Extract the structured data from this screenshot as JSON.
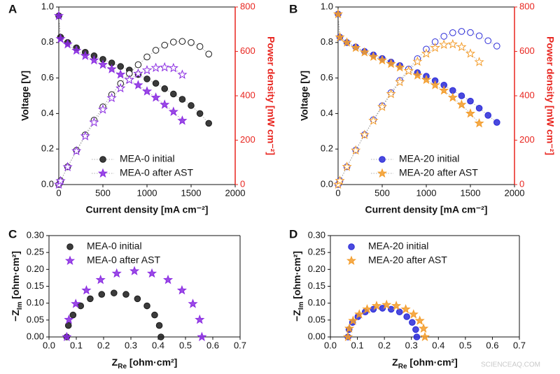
{
  "chart_data": [
    {
      "type": "line",
      "label": "A",
      "xlabel": "Current density [mA cm⁻²]",
      "ylabel": "Voltage [V]",
      "y2label": "Power density [mW cm⁻²]",
      "y2color": "#e8251f",
      "legend": "lower left",
      "xlim": [
        0,
        2000
      ],
      "xticks": [
        0,
        500,
        1000,
        1500,
        2000
      ],
      "ylim": [
        0,
        1
      ],
      "yticks": [
        {
          "value": 0,
          "label": "0.0"
        },
        0.2,
        0.4,
        0.6,
        0.8,
        {
          "value": 1,
          "label": "1.0"
        }
      ],
      "y2lim": [
        0,
        800
      ],
      "y2ticks": [
        0,
        200,
        400,
        600,
        800
      ],
      "series": [
        {
          "name": "MEA-0 initial",
          "color": "#1a1a1a",
          "marker": "circle",
          "filled": true,
          "x": [
            0,
            20,
            100,
            200,
            300,
            400,
            500,
            600,
            700,
            800,
            900,
            1000,
            1100,
            1200,
            1300,
            1400,
            1500,
            1600,
            1700
          ],
          "values": [
            0.95,
            0.83,
            0.8,
            0.77,
            0.745,
            0.725,
            0.705,
            0.685,
            0.665,
            0.645,
            0.62,
            0.595,
            0.57,
            0.54,
            0.51,
            0.48,
            0.445,
            0.4,
            0.345
          ]
        },
        {
          "name": "MEA-0 after AST",
          "color": "#8a2be2",
          "marker": "star",
          "filled": true,
          "x": [
            0,
            20,
            100,
            200,
            300,
            400,
            500,
            600,
            700,
            800,
            900,
            1000,
            1100,
            1200,
            1300,
            1400
          ],
          "values": [
            0.95,
            0.82,
            0.79,
            0.755,
            0.725,
            0.7,
            0.675,
            0.65,
            0.62,
            0.59,
            0.56,
            0.525,
            0.49,
            0.45,
            0.41,
            0.36
          ]
        },
        {
          "color": "#1a1a1a",
          "marker": "circle",
          "filled": false,
          "axis": "y2",
          "x": [
            0,
            20,
            100,
            200,
            300,
            400,
            500,
            600,
            700,
            800,
            900,
            1000,
            1100,
            1200,
            1300,
            1400,
            1500,
            1600,
            1700
          ],
          "values": [
            0,
            17,
            80,
            154,
            224,
            290,
            350,
            405,
            455,
            500,
            540,
            575,
            605,
            628,
            642,
            645,
            640,
            622,
            588
          ]
        },
        {
          "color": "#8a2be2",
          "marker": "star",
          "filled": false,
          "axis": "y2",
          "x": [
            0,
            20,
            100,
            200,
            300,
            400,
            500,
            600,
            700,
            800,
            900,
            1000,
            1100,
            1200,
            1300,
            1400
          ],
          "values": [
            0,
            16,
            79,
            151,
            218,
            280,
            338,
            390,
            434,
            472,
            500,
            515,
            526,
            528,
            525,
            495
          ]
        }
      ]
    },
    {
      "type": "line",
      "label": "B",
      "xlabel": "Current density [mA cm⁻²]",
      "ylabel": "Voltage [V]",
      "y2label": "Power density [mW cm⁻²]",
      "y2color": "#e8251f",
      "legend": "lower left",
      "xlim": [
        0,
        2000
      ],
      "xticks": [
        0,
        500,
        1000,
        1500,
        2000
      ],
      "ylim": [
        0,
        1
      ],
      "yticks": [
        {
          "value": 0,
          "label": "0.0"
        },
        0.2,
        0.4,
        0.6,
        0.8,
        {
          "value": 1,
          "label": "1.0"
        }
      ],
      "y2lim": [
        0,
        800
      ],
      "y2ticks": [
        0,
        200,
        400,
        600,
        800
      ],
      "series": [
        {
          "name": "MEA-20 initial",
          "color": "#2a2ad8",
          "marker": "circle",
          "filled": true,
          "x": [
            0,
            20,
            100,
            200,
            300,
            400,
            500,
            600,
            700,
            800,
            900,
            1000,
            1100,
            1200,
            1300,
            1400,
            1500,
            1600,
            1700,
            1800
          ],
          "values": [
            0.96,
            0.83,
            0.8,
            0.775,
            0.75,
            0.73,
            0.71,
            0.69,
            0.67,
            0.65,
            0.63,
            0.61,
            0.585,
            0.56,
            0.53,
            0.5,
            0.47,
            0.43,
            0.39,
            0.35
          ]
        },
        {
          "name": "MEA-20 after AST",
          "color": "#f39c2a",
          "marker": "star",
          "filled": true,
          "x": [
            0,
            20,
            100,
            200,
            300,
            400,
            500,
            600,
            700,
            800,
            900,
            1000,
            1100,
            1200,
            1300,
            1400,
            1500,
            1600
          ],
          "values": [
            0.96,
            0.83,
            0.8,
            0.77,
            0.745,
            0.72,
            0.7,
            0.68,
            0.66,
            0.64,
            0.615,
            0.59,
            0.56,
            0.53,
            0.49,
            0.45,
            0.4,
            0.345
          ]
        },
        {
          "color": "#2a2ad8",
          "marker": "circle",
          "filled": false,
          "axis": "y2",
          "x": [
            0,
            20,
            100,
            200,
            300,
            400,
            500,
            600,
            700,
            800,
            900,
            1000,
            1100,
            1200,
            1300,
            1400,
            1500,
            1600,
            1700,
            1800
          ],
          "values": [
            0,
            17,
            80,
            155,
            225,
            292,
            355,
            414,
            469,
            520,
            567,
            610,
            643,
            668,
            684,
            690,
            685,
            670,
            648,
            624
          ]
        },
        {
          "color": "#f39c2a",
          "marker": "star",
          "filled": false,
          "axis": "y2",
          "x": [
            0,
            20,
            100,
            200,
            300,
            400,
            500,
            600,
            700,
            800,
            900,
            1000,
            1100,
            1200,
            1300,
            1400,
            1500,
            1600
          ],
          "values": [
            0,
            17,
            80,
            154,
            224,
            288,
            350,
            408,
            462,
            512,
            554,
            590,
            616,
            630,
            632,
            620,
            590,
            552
          ]
        }
      ]
    },
    {
      "type": "scatter",
      "label": "C",
      "xlabel": [
        "Z",
        "Re",
        " [ohm·cm²]"
      ],
      "ylabel": [
        "−Z",
        "Im",
        " [ohm·cm²]"
      ],
      "legend": "upper left",
      "xlim": [
        0,
        0.7
      ],
      "xticks": [
        {
          "value": 0,
          "label": "0.0"
        },
        0.1,
        0.2,
        0.3,
        0.4,
        0.5,
        0.6,
        0.7
      ],
      "ylim": [
        0,
        0.3
      ],
      "yticks": [
        {
          "value": 0,
          "label": "0.00"
        },
        0.05,
        {
          "value": 0.1,
          "label": "0.10"
        },
        0.15,
        {
          "value": 0.2,
          "label": "0.20"
        },
        0.25,
        {
          "value": 0.3,
          "label": "0.30"
        }
      ],
      "series": [
        {
          "name": "MEA-0 initial",
          "color": "#1a1a1a",
          "marker": "circle",
          "filled": true,
          "x": [
            0.065,
            0.071,
            0.088,
            0.116,
            0.151,
            0.193,
            0.238,
            0.282,
            0.324,
            0.359,
            0.387,
            0.404,
            0.41
          ],
          "values": [
            0,
            0.034,
            0.065,
            0.092,
            0.113,
            0.126,
            0.13,
            0.126,
            0.113,
            0.092,
            0.065,
            0.034,
            0
          ]
        },
        {
          "name": "MEA-0 after AST",
          "color": "#8a2be2",
          "marker": "star",
          "filled": true,
          "x": [
            0.065,
            0.073,
            0.098,
            0.137,
            0.189,
            0.248,
            0.313,
            0.377,
            0.436,
            0.487,
            0.527,
            0.552,
            0.56
          ],
          "values": [
            0,
            0.051,
            0.098,
            0.138,
            0.169,
            0.188,
            0.195,
            0.188,
            0.169,
            0.138,
            0.098,
            0.051,
            0
          ]
        }
      ]
    },
    {
      "type": "scatter",
      "label": "D",
      "xlabel": [
        "Z",
        "Re",
        " [ohm·cm²]"
      ],
      "ylabel": [
        "−Z",
        "Im",
        " [ohm·cm²]"
      ],
      "legend": "upper left",
      "xlim": [
        0,
        0.7
      ],
      "xticks": [
        {
          "value": 0,
          "label": "0.0"
        },
        0.1,
        0.2,
        0.3,
        0.4,
        0.5,
        0.6,
        0.7
      ],
      "ylim": [
        0,
        0.3
      ],
      "yticks": [
        {
          "value": 0,
          "label": "0.00"
        },
        0.05,
        {
          "value": 0.1,
          "label": "0.10"
        },
        0.15,
        {
          "value": 0.2,
          "label": "0.20"
        },
        0.25,
        {
          "value": 0.3,
          "label": "0.30"
        }
      ],
      "series": [
        {
          "name": "MEA-20 initial",
          "color": "#2a2ad8",
          "marker": "circle",
          "filled": true,
          "x": [
            0.065,
            0.069,
            0.082,
            0.102,
            0.129,
            0.159,
            0.193,
            0.225,
            0.256,
            0.283,
            0.303,
            0.316,
            0.32
          ],
          "values": [
            0,
            0.022,
            0.043,
            0.06,
            0.074,
            0.082,
            0.085,
            0.082,
            0.074,
            0.06,
            0.043,
            0.022,
            0
          ]
        },
        {
          "name": "MEA-20 after AST",
          "color": "#f39c2a",
          "marker": "star",
          "filled": true,
          "x": [
            0.065,
            0.07,
            0.084,
            0.107,
            0.136,
            0.171,
            0.208,
            0.244,
            0.279,
            0.308,
            0.331,
            0.345,
            0.35
          ],
          "values": [
            0,
            0.025,
            0.048,
            0.067,
            0.082,
            0.092,
            0.095,
            0.092,
            0.082,
            0.067,
            0.048,
            0.025,
            0
          ]
        }
      ]
    }
  ],
  "watermark": "SCIENCEAQ.COM"
}
